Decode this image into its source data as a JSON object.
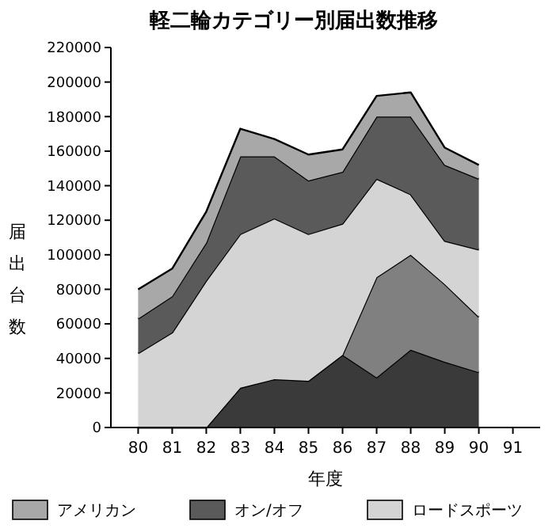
{
  "chart_data": {
    "type": "area",
    "stacked": true,
    "title": "軽二輪カテゴリー別届出数推移",
    "xlabel": "年度",
    "ylabel": "届出台数",
    "categories": [
      "80",
      "81",
      "82",
      "83",
      "84",
      "85",
      "86",
      "87",
      "88",
      "89",
      "90",
      "91"
    ],
    "series": [
      {
        "color": "#3a3a3a",
        "values": [
          0,
          0,
          0,
          23000,
          28000,
          27000,
          42000,
          29000,
          45000,
          38000,
          32000,
          null
        ]
      },
      {
        "color": "#808080",
        "values": [
          0,
          0,
          0,
          0,
          0,
          0,
          0,
          58000,
          55000,
          45000,
          32000,
          null
        ]
      },
      {
        "name": "ロードスポーツ",
        "color": "#d4d4d4",
        "values": [
          43000,
          55000,
          85000,
          89000,
          93000,
          85000,
          76000,
          57000,
          35000,
          25000,
          39000,
          null
        ]
      },
      {
        "name": "オン/オフ",
        "color": "#5a5a5a",
        "values": [
          20000,
          21000,
          22000,
          45000,
          36000,
          31000,
          30000,
          36000,
          45000,
          44000,
          41000,
          null
        ]
      },
      {
        "name": "アメリカン",
        "color": "#a8a8a8",
        "values": [
          17000,
          16000,
          18000,
          16000,
          10000,
          15000,
          13000,
          12000,
          14000,
          10000,
          8000,
          null
        ]
      }
    ],
    "ylim": [
      0,
      220000
    ],
    "yticks": [
      0,
      20000,
      40000,
      60000,
      80000,
      100000,
      120000,
      140000,
      160000,
      180000,
      200000,
      220000
    ],
    "legend": "bottom"
  }
}
